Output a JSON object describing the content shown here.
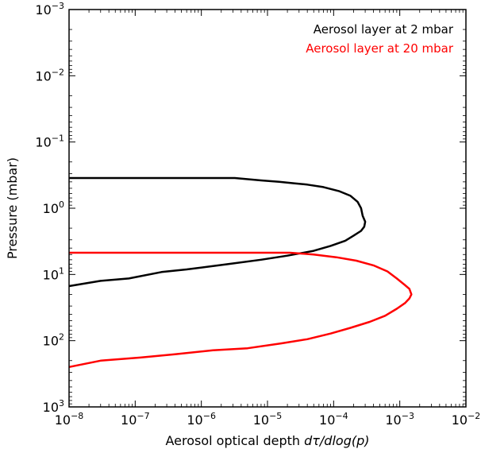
{
  "chart_data": {
    "type": "line",
    "xlabel": "Aerosol optical depth dτ/dlog(p)",
    "xlabel_parts": {
      "prefix": "Aerosol optical depth ",
      "math": "dτ/dlog(p)"
    },
    "ylabel": "Pressure (mbar)",
    "x_scale": "log",
    "y_scale": "log",
    "y_inverted": true,
    "xlim": [
      1e-08,
      0.01
    ],
    "ylim": [
      1000,
      0.001
    ],
    "grid": false,
    "legend_position": "top-right",
    "x_ticks": [
      {
        "value": 1e-08,
        "base": "10",
        "exp": "−8"
      },
      {
        "value": 1e-07,
        "base": "10",
        "exp": "−7"
      },
      {
        "value": 1e-06,
        "base": "10",
        "exp": "−6"
      },
      {
        "value": 1e-05,
        "base": "10",
        "exp": "−5"
      },
      {
        "value": 0.0001,
        "base": "10",
        "exp": "−4"
      },
      {
        "value": 0.001,
        "base": "10",
        "exp": "−3"
      },
      {
        "value": 0.01,
        "base": "10",
        "exp": "−2"
      }
    ],
    "y_ticks": [
      {
        "value": 0.001,
        "base": "10",
        "exp": "−3"
      },
      {
        "value": 0.01,
        "base": "10",
        "exp": "−2"
      },
      {
        "value": 0.1,
        "base": "10",
        "exp": "−1"
      },
      {
        "value": 1,
        "base": "10",
        "exp": "0"
      },
      {
        "value": 10,
        "base": "10",
        "exp": "1"
      },
      {
        "value": 100,
        "base": "10",
        "exp": "2"
      },
      {
        "value": 1000,
        "base": "10",
        "exp": "3"
      }
    ],
    "series": [
      {
        "name": "Aerosol layer at 2 mbar",
        "color": "#000000",
        "points": [
          [
            3.2e-06,
            0.35
          ],
          [
            8e-06,
            0.38
          ],
          [
            1.5e-05,
            0.4
          ],
          [
            2.5e-05,
            0.42
          ],
          [
            4e-05,
            0.44
          ],
          [
            7e-05,
            0.48
          ],
          [
            0.00012,
            0.55
          ],
          [
            0.00018,
            0.65
          ],
          [
            0.00023,
            0.8
          ],
          [
            0.00026,
            1.0
          ],
          [
            0.000275,
            1.3
          ],
          [
            0.0003,
            1.6
          ],
          [
            0.00029,
            1.9
          ],
          [
            0.00026,
            2.2
          ],
          [
            0.0002,
            2.6
          ],
          [
            0.00015,
            3.1
          ],
          [
            9e-05,
            3.7
          ],
          [
            5e-05,
            4.4
          ],
          [
            2e-05,
            5.2
          ],
          [
            8e-06,
            6.0
          ],
          [
            2.5e-06,
            7.0
          ],
          [
            6e-07,
            8.4
          ],
          [
            2.5e-07,
            9.2
          ],
          [
            8e-08,
            11.5
          ],
          [
            3e-08,
            12.5
          ],
          [
            1e-08,
            15.0
          ]
        ],
        "flat_top_at": 0.35
      },
      {
        "name": "Aerosol layer at 20 mbar",
        "color": "#ff0000",
        "points": [
          [
            2.2e-05,
            4.7
          ],
          [
            5e-05,
            5.0
          ],
          [
            0.00011,
            5.5
          ],
          [
            0.00022,
            6.2
          ],
          [
            0.0004,
            7.3
          ],
          [
            0.00065,
            9.0
          ],
          [
            0.0009,
            11.5
          ],
          [
            0.00115,
            14.0
          ],
          [
            0.0014,
            16.5
          ],
          [
            0.0015,
            20.0
          ],
          [
            0.0014,
            23.0
          ],
          [
            0.0012,
            27.0
          ],
          [
            0.0009,
            33.0
          ],
          [
            0.0006,
            42.0
          ],
          [
            0.00035,
            52.0
          ],
          [
            0.00018,
            64.0
          ],
          [
            9e-05,
            78.0
          ],
          [
            4e-05,
            95.0
          ],
          [
            1.6e-05,
            110.0
          ],
          [
            5e-06,
            130.0
          ],
          [
            1.5e-06,
            140.0
          ],
          [
            4e-07,
            160.0
          ],
          [
            1.2e-07,
            180.0
          ],
          [
            3e-08,
            200.0
          ],
          [
            1e-08,
            250.0
          ]
        ],
        "flat_top_at": 4.7
      }
    ]
  }
}
